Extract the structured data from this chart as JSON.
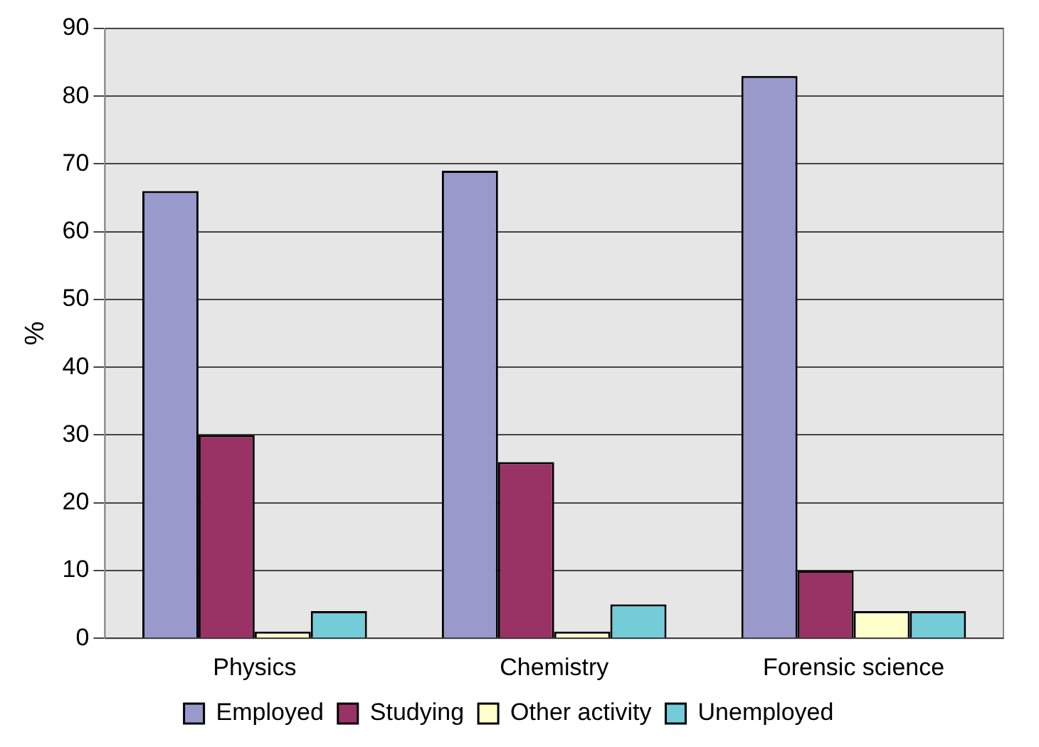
{
  "chart_data": {
    "type": "bar",
    "ylabel": "%",
    "categories": [
      "Physics",
      "Chemistry",
      "Forensic science"
    ],
    "series": [
      {
        "name": "Employed",
        "color": "#9999cc",
        "values": [
          66,
          69,
          83
        ]
      },
      {
        "name": "Studying",
        "color": "#993366",
        "values": [
          30,
          26,
          10
        ]
      },
      {
        "name": "Other activity",
        "color": "#ffffcc",
        "values": [
          1,
          1,
          4
        ]
      },
      {
        "name": "Unemployed",
        "color": "#74ccd8",
        "values": [
          4,
          5,
          4
        ]
      }
    ],
    "ylim": [
      0,
      90
    ],
    "yticks": [
      0,
      10,
      20,
      30,
      40,
      50,
      60,
      70,
      80,
      90
    ],
    "grid": "y",
    "legend": "bottom"
  }
}
